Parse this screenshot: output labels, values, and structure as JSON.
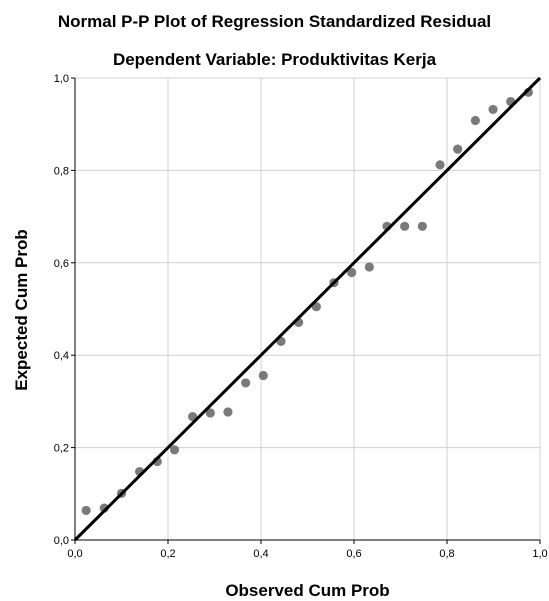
{
  "chart_data": {
    "type": "scatter",
    "title": "Normal P-P Plot of Regression Standardized Residual",
    "subtitle": "Dependent Variable: Produktivitas Kerja",
    "xlabel": "Observed Cum Prob",
    "ylabel": "Expected Cum Prob",
    "xlim": [
      0,
      1
    ],
    "ylim": [
      0,
      1
    ],
    "xticks": [
      "0,0",
      "0,2",
      "0,4",
      "0,6",
      "0,8",
      "1,0"
    ],
    "yticks": [
      "0,0",
      "0,2",
      "0,4",
      "0,6",
      "0,8",
      "1,0"
    ],
    "grid": true,
    "reference_line": {
      "from": [
        0,
        0
      ],
      "to": [
        1,
        1
      ]
    },
    "points": [
      {
        "x": 0.024,
        "y": 0.064
      },
      {
        "x": 0.063,
        "y": 0.069
      },
      {
        "x": 0.1,
        "y": 0.101
      },
      {
        "x": 0.139,
        "y": 0.148
      },
      {
        "x": 0.177,
        "y": 0.17
      },
      {
        "x": 0.214,
        "y": 0.195
      },
      {
        "x": 0.253,
        "y": 0.267
      },
      {
        "x": 0.291,
        "y": 0.275
      },
      {
        "x": 0.329,
        "y": 0.277
      },
      {
        "x": 0.367,
        "y": 0.34
      },
      {
        "x": 0.405,
        "y": 0.356
      },
      {
        "x": 0.443,
        "y": 0.43
      },
      {
        "x": 0.481,
        "y": 0.471
      },
      {
        "x": 0.519,
        "y": 0.505
      },
      {
        "x": 0.557,
        "y": 0.557
      },
      {
        "x": 0.595,
        "y": 0.579
      },
      {
        "x": 0.633,
        "y": 0.591
      },
      {
        "x": 0.671,
        "y": 0.679
      },
      {
        "x": 0.709,
        "y": 0.679
      },
      {
        "x": 0.747,
        "y": 0.679
      },
      {
        "x": 0.785,
        "y": 0.812
      },
      {
        "x": 0.823,
        "y": 0.846
      },
      {
        "x": 0.861,
        "y": 0.908
      },
      {
        "x": 0.899,
        "y": 0.932
      },
      {
        "x": 0.937,
        "y": 0.949
      },
      {
        "x": 0.975,
        "y": 0.969
      }
    ],
    "colors": {
      "points": "#7a7a7a",
      "line": "#000000",
      "grid": "#d0d0d0",
      "axes": "#000000"
    }
  }
}
